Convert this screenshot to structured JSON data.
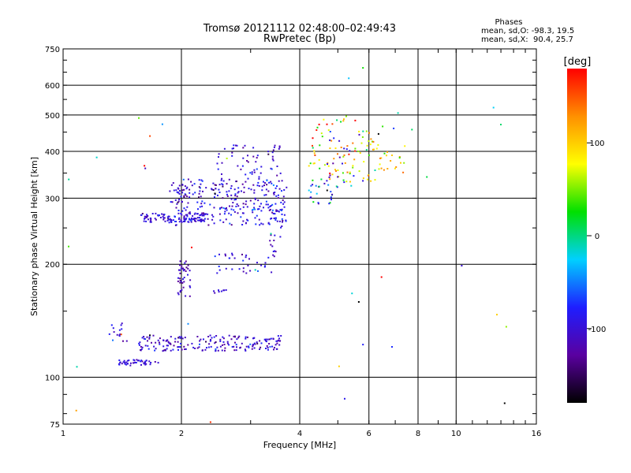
{
  "chart_data": {
    "type": "scatter",
    "title": "Tromsø 20121112 02:48:00–02:49:43",
    "subtitle": "RwPretec (Bp)",
    "xlabel": "Frequency [MHz]",
    "ylabel": "Stationary phase Virtual Height [km]",
    "x_scale": "log",
    "y_scale": "log",
    "xlim": [
      1,
      16
    ],
    "ylim": [
      75,
      750
    ],
    "x_ticks": [
      1,
      2,
      4,
      6,
      8,
      10,
      16
    ],
    "y_ticks": [
      75,
      100,
      200,
      300,
      400,
      500,
      600,
      750
    ],
    "x_tick_labels": [
      "1",
      "2",
      "4",
      "6",
      "8",
      "10",
      "16"
    ],
    "y_tick_labels": [
      "75",
      "100",
      "200",
      "300",
      "400",
      "500",
      "600",
      "750"
    ],
    "grid": true,
    "colorbar": {
      "label": "[deg]",
      "range": [
        -180,
        180
      ],
      "ticks": [
        100,
        0,
        -100
      ],
      "tick_labels": [
        "100",
        "0",
        "-100"
      ],
      "colors": [
        "#000000",
        "#5a00a0",
        "#1e1eff",
        "#00d0ff",
        "#00e000",
        "#ffff00",
        "#ff9000",
        "#ff0000"
      ]
    },
    "phases_legend": {
      "title": "Phases",
      "line_o": "mean, sd,O: -98.3, 19.5",
      "line_x": "mean, sd,X:  90.4, 25.7"
    },
    "clusters": [
      {
        "x_range": [
          1.35,
          1.75
        ],
        "y_range": [
          108,
          112
        ],
        "count": 45,
        "phase_mean": -100,
        "phase_sd": 12
      },
      {
        "x_range": [
          1.3,
          1.45
        ],
        "y_range": [
          125,
          140
        ],
        "count": 14,
        "phase_mean": -100,
        "phase_sd": 15
      },
      {
        "x_range": [
          1.55,
          3.6
        ],
        "y_range": [
          118,
          130
        ],
        "count": 190,
        "phase_mean": -105,
        "phase_sd": 20
      },
      {
        "x_range": [
          1.55,
          2.3
        ],
        "y_range": [
          260,
          275
        ],
        "count": 110,
        "phase_mean": -100,
        "phase_sd": 15
      },
      {
        "x_range": [
          1.85,
          3.7
        ],
        "y_range": [
          255,
          340
        ],
        "count": 290,
        "phase_mean": -100,
        "phase_sd": 22
      },
      {
        "x_range": [
          2.45,
          3.6
        ],
        "y_range": [
          340,
          420
        ],
        "count": 55,
        "phase_mean": -100,
        "phase_sd": 20
      },
      {
        "x_range": [
          1.95,
          2.1
        ],
        "y_range": [
          165,
          205
        ],
        "count": 40,
        "phase_mean": -110,
        "phase_sd": 15
      },
      {
        "x_range": [
          2.4,
          3.5
        ],
        "y_range": [
          190,
          215
        ],
        "count": 35,
        "phase_mean": -100,
        "phase_sd": 18
      },
      {
        "x_range": [
          3.3,
          3.6
        ],
        "y_range": [
          215,
          290
        ],
        "count": 25,
        "phase_mean": -100,
        "phase_sd": 15
      },
      {
        "x_range": [
          2.4,
          2.6
        ],
        "y_range": [
          168,
          172
        ],
        "count": 8,
        "phase_mean": -100,
        "phase_sd": 12
      },
      {
        "x_range": [
          4.2,
          5.0
        ],
        "y_range": [
          290,
          330
        ],
        "count": 25,
        "phase_mean": -60,
        "phase_sd": 60
      },
      {
        "x_range": [
          4.2,
          6.2
        ],
        "y_range": [
          330,
          490
        ],
        "count": 90,
        "phase_mean": 80,
        "phase_sd": 55
      },
      {
        "x_range": [
          6.2,
          7.4
        ],
        "y_range": [
          350,
          420
        ],
        "count": 22,
        "phase_mean": 100,
        "phase_sd": 30
      },
      {
        "x_range": [
          4.6,
          5.8
        ],
        "y_range": [
          320,
          460
        ],
        "count": 18,
        "phase_mean": -100,
        "phase_sd": 15
      },
      {
        "x_range": [
          1.0,
          16.0
        ],
        "y_range": [
          75,
          750
        ],
        "count": 45,
        "phase_mean": 0,
        "phase_sd": 100
      }
    ]
  }
}
